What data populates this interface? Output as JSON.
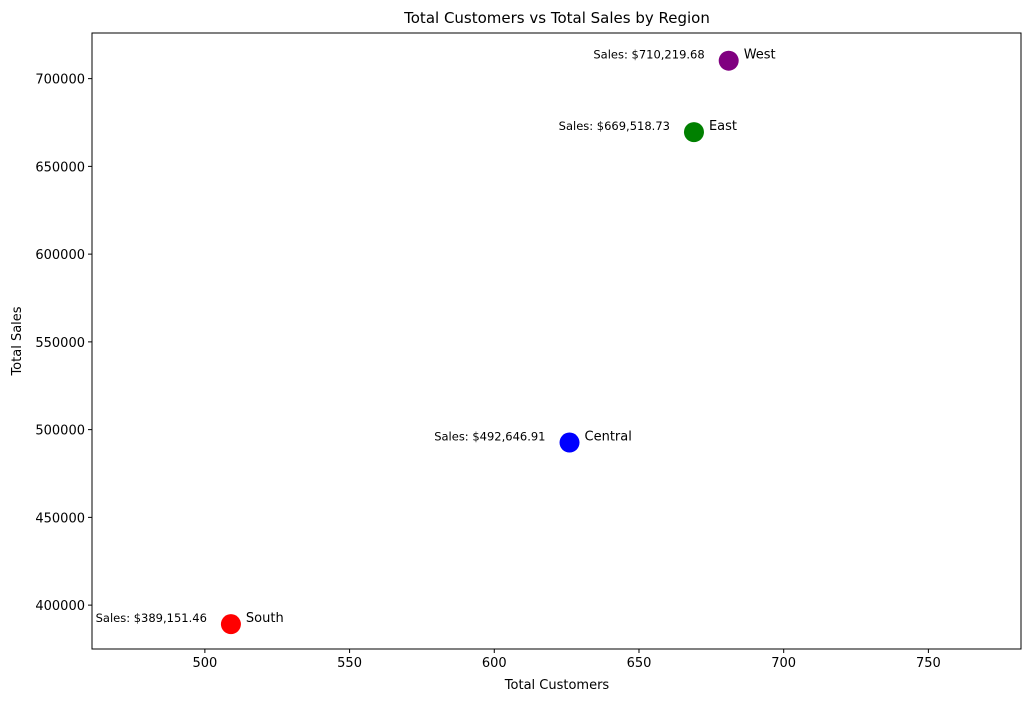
{
  "chart_data": {
    "type": "scatter",
    "title": "Total Customers vs Total Sales by Region",
    "xlabel": "Total Customers",
    "ylabel": "Total Sales",
    "xlim": [
      461,
      782
    ],
    "ylim": [
      375000,
      726000
    ],
    "xticks": [
      500,
      550,
      600,
      650,
      700,
      750
    ],
    "yticks": [
      400000,
      450000,
      500000,
      550000,
      600000,
      650000,
      700000
    ],
    "grid": false,
    "points": [
      {
        "label": "Central",
        "x": 626,
        "y": 492646.91,
        "sales_label": "Sales: $492,646.91",
        "color": "#0000ff"
      },
      {
        "label": "East",
        "x": 669,
        "y": 669518.73,
        "sales_label": "Sales: $669,518.73",
        "color": "#008000"
      },
      {
        "label": "South",
        "x": 509,
        "y": 389151.46,
        "sales_label": "Sales: $389,151.46",
        "color": "#ff0000"
      },
      {
        "label": "West",
        "x": 681,
        "y": 710219.68,
        "sales_label": "Sales: $710,219.68",
        "color": "#800080"
      }
    ]
  }
}
